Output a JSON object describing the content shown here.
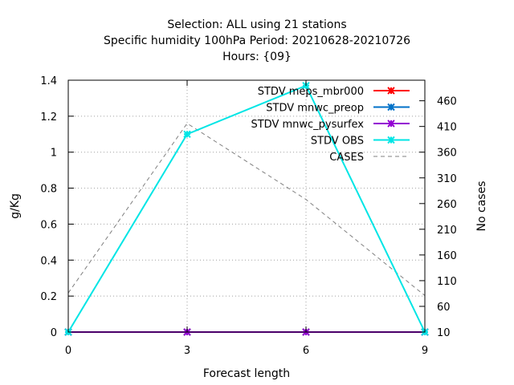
{
  "chart_data": {
    "type": "line",
    "title_lines": [
      "Selection: ALL using    21 stations",
      "Specific humidity 100hPa   Period: 20210628-20210726",
      "Hours: {09}"
    ],
    "xlabel": "Forecast length",
    "ylabel": "g/Kg",
    "y2label": "No cases",
    "x": [
      0,
      3,
      6,
      9
    ],
    "xticks": [
      "0",
      "3",
      "6",
      "9"
    ],
    "xlim": [
      0,
      9
    ],
    "ylim": [
      0,
      1.4
    ],
    "yticks": [
      "0",
      "0.2",
      "0.4",
      "0.6",
      "0.8",
      "1",
      "1.2",
      "1.4"
    ],
    "y2lim": [
      10,
      500
    ],
    "y2ticks": [
      "10",
      "60",
      "110",
      "160",
      "210",
      "260",
      "310",
      "360",
      "410",
      "460"
    ],
    "grid": true,
    "legend_position": "top-right",
    "series": [
      {
        "name": "STDV meps_mbr000",
        "color": "#ff0000",
        "axis": "y",
        "values": [
          0,
          0,
          0,
          0
        ]
      },
      {
        "name": "STDV mnwc_preop",
        "color": "#0072c8",
        "axis": "y",
        "values": [
          0,
          0,
          0,
          0
        ]
      },
      {
        "name": "STDV mnwc_pysurfex",
        "color": "#9400d3",
        "axis": "y",
        "values": [
          0,
          0,
          0,
          0
        ]
      },
      {
        "name": "STDV OBS",
        "color": "#00e5e5",
        "axis": "y",
        "values": [
          0,
          1.1,
          1.37,
          0
        ]
      },
      {
        "name": "CASES",
        "color": "#808080",
        "axis": "y2",
        "dashed": true,
        "values": [
          86,
          416,
          268,
          81
        ]
      }
    ]
  }
}
